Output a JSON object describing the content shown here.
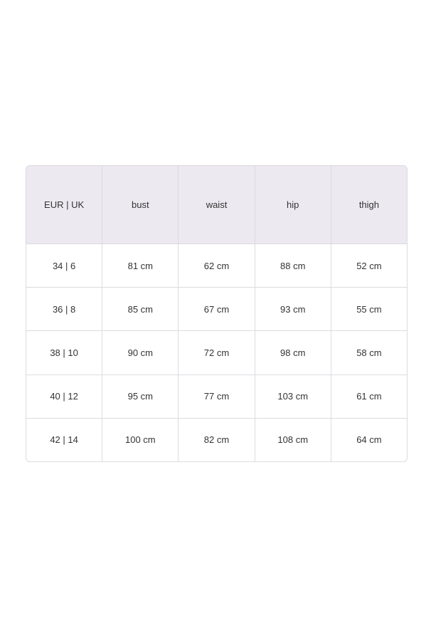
{
  "table": {
    "headers": [
      "EUR | UK",
      "bust",
      "waist",
      "hip",
      "thigh"
    ],
    "rows": [
      [
        "34 | 6",
        "81 cm",
        "62 cm",
        "88 cm",
        "52 cm"
      ],
      [
        "36 | 8",
        "85 cm",
        "67 cm",
        "93 cm",
        "55 cm"
      ],
      [
        "38 | 10",
        "90 cm",
        "72 cm",
        "98 cm",
        "58 cm"
      ],
      [
        "40 | 12",
        "95 cm",
        "77 cm",
        "103 cm",
        "61 cm"
      ],
      [
        "42 | 14",
        "100 cm",
        "82 cm",
        "108 cm",
        "64 cm"
      ]
    ],
    "header_bg": "#ece9f1"
  }
}
